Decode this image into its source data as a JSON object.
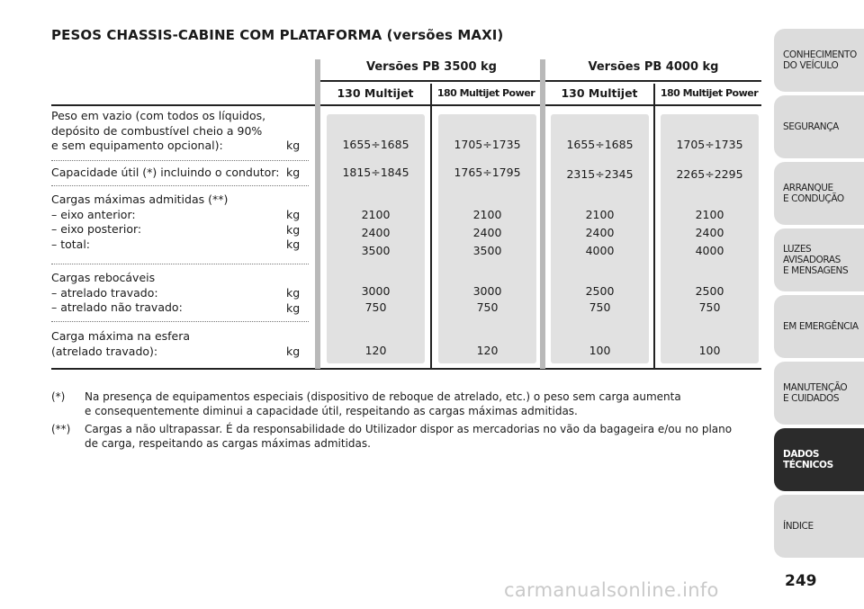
{
  "title": "PESOS CHASSIS-CABINE COM PLATAFORMA (versões MAXI)",
  "groups": [
    "Versões PB 3500 kg",
    "Versões PB 4000 kg"
  ],
  "columns": [
    "130 Multijet",
    "180 Multijet Power",
    "130 Multijet",
    "180 Multijet Power"
  ],
  "rows": [
    {
      "label": "Peso em vazio (com todos os líquidos,\ndepósito de combustível cheio a 90%\ne sem equipamento opcional):",
      "unit": "kg",
      "values": [
        "1655÷1685",
        "1705÷1735",
        "1655÷1685",
        "1705÷1735"
      ]
    },
    {
      "label": "Capacidade útil (*) incluindo o condutor:",
      "unit": "kg",
      "values": [
        "1815÷1845",
        "1765÷1795",
        "2315÷2345",
        "2265÷2295"
      ]
    },
    {
      "label": "Cargas máximas admitidas (**)\n– eixo anterior:\n– eixo posterior:\n– total:",
      "unit": "kg\nkg\nkg",
      "values": [
        "2100\n2400\n3500",
        "2100\n2400\n3500",
        "2100\n2400\n4000",
        "2100\n2400\n4000"
      ]
    },
    {
      "label": "Cargas rebocáveis\n– atrelado travado:\n– atrelado não travado:",
      "unit": "kg\nkg",
      "values": [
        "3000\n750",
        "3000\n750",
        "2500\n750",
        "2500\n750"
      ]
    },
    {
      "label": "Carga máxima na esfera\n(atrelado travado):",
      "unit": "kg",
      "values": [
        "120",
        "120",
        "100",
        "100"
      ]
    }
  ],
  "notes": [
    {
      "mark": "(*)",
      "text": "Na presença de equipamentos especiais (dispositivo de reboque de atrelado, etc.) o peso sem carga aumenta\ne consequentemente diminui a capacidade útil, respeitando as cargas máximas admitidas."
    },
    {
      "mark": "(**)",
      "text": "Cargas a não ultrapassar. É da responsabilidade do Utilizador dispor as mercadorias no vão da bagageira e/ou no plano\nde carga, respeitando as cargas máximas admitidas."
    }
  ],
  "sidebar": [
    {
      "label": "CONHECIMENTO\nDO VEÍCULO",
      "active": false
    },
    {
      "label": "SEGURANÇA",
      "active": false
    },
    {
      "label": "ARRANQUE\nE CONDUÇÃO",
      "active": false
    },
    {
      "label": "LUZES\nAVISADORAS\nE MENSAGENS",
      "active": false
    },
    {
      "label": "EM EMERGÊNCIA",
      "active": false
    },
    {
      "label": "MANUTENÇÃO\nE CUIDADOS",
      "active": false
    },
    {
      "label": "DADOS\nTÉCNICOS",
      "active": true
    },
    {
      "label": "ÍNDICE",
      "active": false
    }
  ],
  "page_number": "249",
  "watermark": "carmanualsonline.info"
}
